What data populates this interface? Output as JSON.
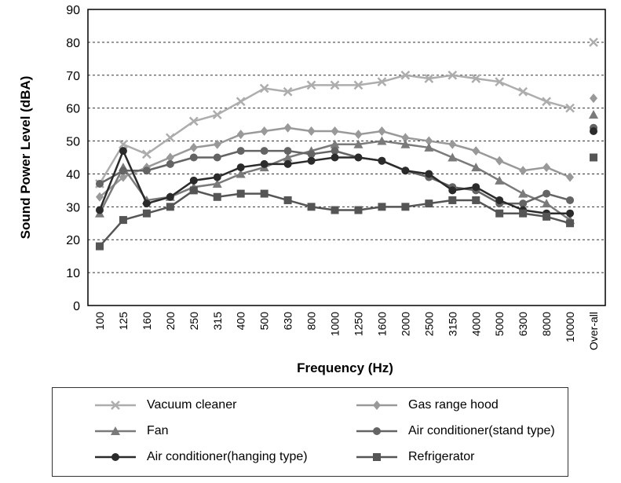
{
  "chart_data": {
    "type": "line",
    "title": "",
    "xlabel": "Frequency (Hz)",
    "ylabel": "Sound Power Level  (dBA)",
    "ylim": [
      0,
      90
    ],
    "yticks": [
      0,
      10,
      20,
      30,
      40,
      50,
      60,
      70,
      80,
      90
    ],
    "grid": "horizontal dashed",
    "categories": [
      "100",
      "125",
      "160",
      "200",
      "250",
      "315",
      "400",
      "500",
      "630",
      "800",
      "1000",
      "1250",
      "1600",
      "2000",
      "2500",
      "3150",
      "4000",
      "5000",
      "6300",
      "8000",
      "10000"
    ],
    "overall_label": "Over-all",
    "legend_position": "bottom",
    "series": [
      {
        "name": "Vacuum cleaner",
        "color": "#adadad",
        "marker": "x",
        "values": [
          37,
          49,
          46,
          51,
          56,
          58,
          62,
          66,
          65,
          67,
          67,
          67,
          68,
          70,
          69,
          70,
          69,
          68,
          65,
          62,
          60
        ],
        "overall": 80
      },
      {
        "name": "Gas range hood",
        "color": "#999999",
        "marker": "diamond",
        "values": [
          33,
          39,
          42,
          45,
          48,
          49,
          52,
          53,
          54,
          53,
          53,
          52,
          53,
          51,
          50,
          49,
          47,
          44,
          41,
          42,
          39
        ],
        "overall": 63
      },
      {
        "name": "Fan",
        "color": "#7a7a7a",
        "marker": "triangle",
        "values": [
          28,
          42,
          32,
          33,
          36,
          37,
          40,
          42,
          45,
          47,
          49,
          49,
          50,
          49,
          48,
          45,
          42,
          38,
          34,
          31,
          26
        ],
        "overall": 58
      },
      {
        "name": "Air conditioner(stand type)",
        "color": "#646464",
        "marker": "circle",
        "values": [
          37,
          41,
          41,
          43,
          45,
          45,
          47,
          47,
          47,
          46,
          47,
          45,
          44,
          41,
          39,
          36,
          35,
          31,
          31,
          34,
          32
        ],
        "overall": 54
      },
      {
        "name": "Air conditioner(hanging type)",
        "color": "#2b2b2b",
        "marker": "circle",
        "values": [
          29,
          47,
          31,
          33,
          38,
          39,
          42,
          43,
          43,
          44,
          45,
          45,
          44,
          41,
          40,
          35,
          36,
          32,
          29,
          28,
          28
        ],
        "overall": 53
      },
      {
        "name": "Refrigerator",
        "color": "#555555",
        "marker": "square",
        "values": [
          18,
          26,
          28,
          30,
          35,
          33,
          34,
          34,
          32,
          30,
          29,
          29,
          30,
          30,
          31,
          32,
          32,
          28,
          28,
          27,
          25
        ],
        "overall": 45
      }
    ]
  }
}
